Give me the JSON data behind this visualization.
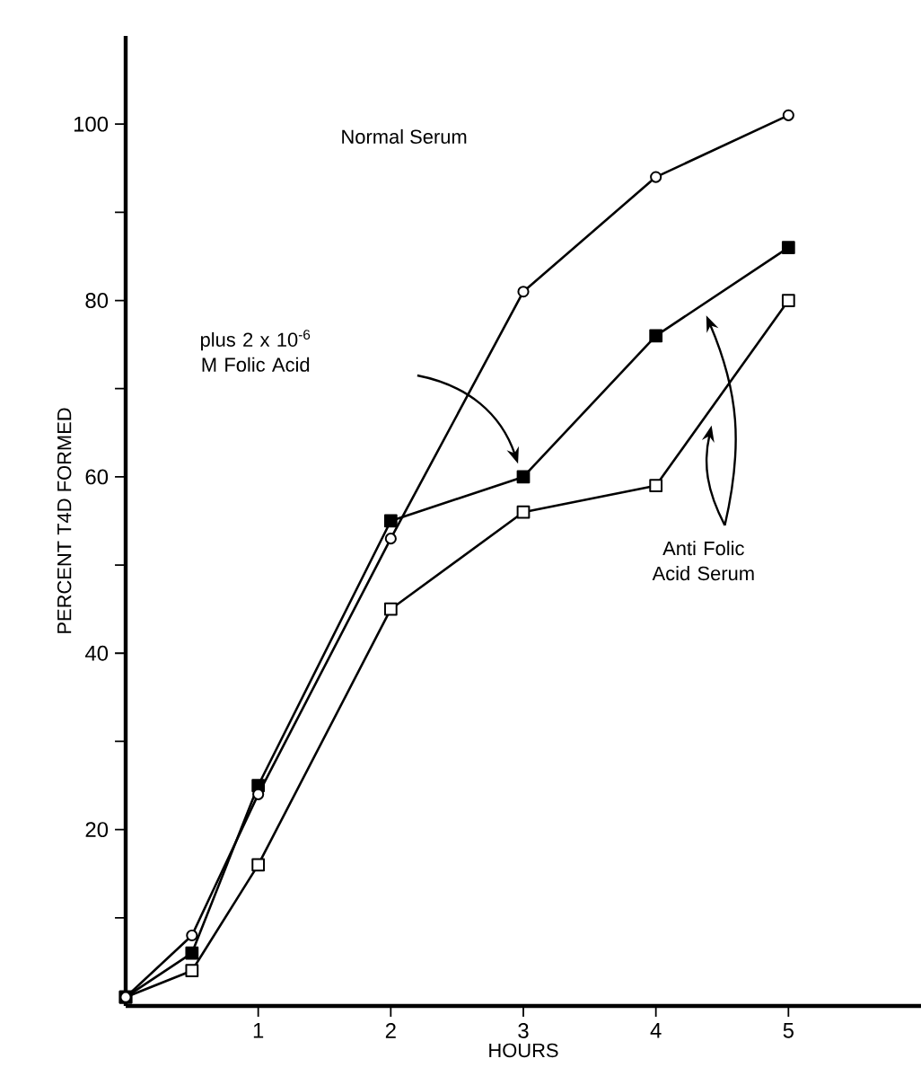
{
  "chart_data": {
    "type": "line",
    "xlabel": "HOURS",
    "ylabel": "PERCENT T4D FORMED",
    "x": [
      0,
      0.5,
      1,
      2,
      3,
      4,
      5
    ],
    "series": [
      {
        "color": "#000000",
        "marker": "circle",
        "values": [
          1,
          8,
          24,
          53,
          81,
          94,
          101
        ]
      },
      {
        "color": "#000000",
        "marker": "square",
        "values": [
          1,
          6,
          25,
          55,
          60,
          76,
          86
        ]
      },
      {
        "color": "#000000",
        "marker": "square",
        "values": [
          1,
          4,
          16,
          45,
          56,
          59,
          80
        ]
      }
    ],
    "xlim": [
      0,
      6
    ],
    "ylim": [
      0,
      110
    ],
    "xticks": [
      1,
      2,
      3,
      4,
      5
    ],
    "yticks": [
      {
        "value": 10,
        "label": null
      },
      20,
      {
        "value": 30,
        "label": null
      },
      40,
      {
        "value": 50,
        "label": null
      },
      60,
      {
        "value": 70,
        "label": null
      },
      80,
      {
        "value": 90,
        "label": null
      },
      100
    ],
    "annotations": [
      "Normal Serum",
      "plus 2 x 10$^{-6}$ M Folic Acid",
      "Anti Folic Acid Serum"
    ],
    "line_style": "solid",
    "grid": false
  }
}
